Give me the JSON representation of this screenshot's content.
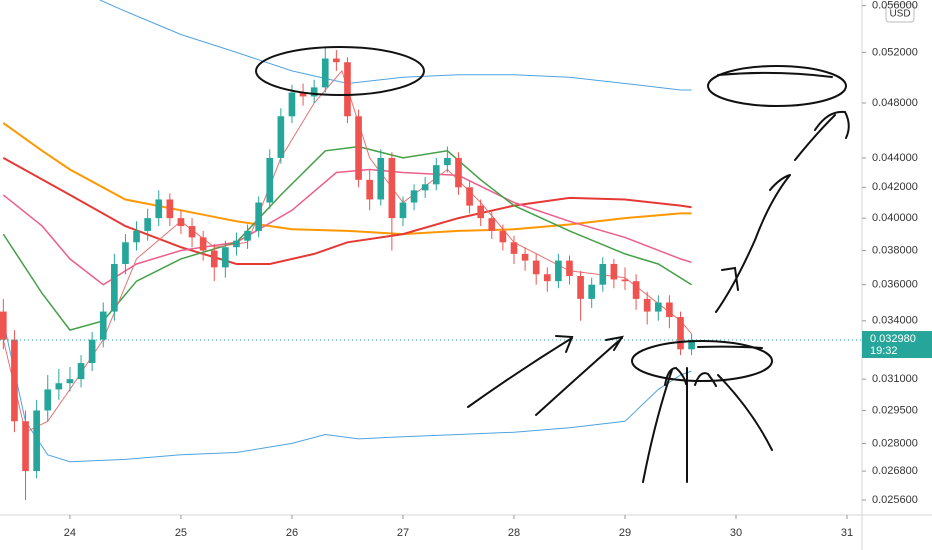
{
  "chart_data": {
    "type": "candlestick",
    "log_scale": true,
    "currency": "USD",
    "up_color": "#26a69a",
    "down_color": "#ef5350",
    "xlim": [
      23.37,
      31.135
    ],
    "xticks": [
      24,
      25,
      26,
      27,
      28,
      29,
      30,
      31
    ],
    "ylim": [
      0.025,
      0.0565
    ],
    "yticks": [
      {
        "value": 0.0256,
        "label": "0.025600"
      },
      {
        "value": 0.0268,
        "label": "0.026800"
      },
      {
        "value": 0.028,
        "label": "0.028000"
      },
      {
        "value": 0.0295,
        "label": "0.029500"
      },
      {
        "value": 0.031,
        "label": "0.031000"
      },
      {
        "value": 0.034,
        "label": "0.034000"
      },
      {
        "value": 0.036,
        "label": "0.036000"
      },
      {
        "value": 0.038,
        "label": "0.038000"
      },
      {
        "value": 0.04,
        "label": "0.040000"
      },
      {
        "value": 0.042,
        "label": "0.042000"
      },
      {
        "value": 0.044,
        "label": "0.044000"
      },
      {
        "value": 0.048,
        "label": "0.048000"
      },
      {
        "value": 0.052,
        "label": "0.052000"
      },
      {
        "value": 0.056,
        "label": "0.056000"
      }
    ],
    "last_price": {
      "value": 0.03298,
      "label": "0.032980"
    },
    "countdown": "19:32",
    "candles": {
      "x": [
        23.4,
        23.5,
        23.6,
        23.7,
        23.8,
        23.9,
        24.0,
        24.1,
        24.2,
        24.3,
        24.4,
        24.5,
        24.6,
        24.7,
        24.8,
        24.9,
        25.0,
        25.1,
        25.2,
        25.3,
        25.4,
        25.5,
        25.6,
        25.7,
        25.8,
        25.9,
        26.0,
        26.1,
        26.2,
        26.3,
        26.4,
        26.5,
        26.6,
        26.7,
        26.8,
        26.9,
        27.0,
        27.1,
        27.2,
        27.3,
        27.4,
        27.5,
        27.6,
        27.7,
        27.8,
        27.9,
        28.0,
        28.1,
        28.2,
        28.3,
        28.4,
        28.5,
        28.6,
        28.7,
        28.8,
        28.9,
        29.0,
        29.1,
        29.2,
        29.3,
        29.4,
        29.5,
        29.6
      ],
      "open": [
        0.0345,
        0.033,
        0.029,
        0.0268,
        0.0295,
        0.0305,
        0.0308,
        0.031,
        0.0318,
        0.033,
        0.0345,
        0.0372,
        0.0385,
        0.0392,
        0.04,
        0.0412,
        0.04,
        0.0395,
        0.0388,
        0.038,
        0.037,
        0.0382,
        0.0386,
        0.0392,
        0.041,
        0.044,
        0.047,
        0.0488,
        0.0485,
        0.0492,
        0.0515,
        0.0512,
        0.047,
        0.0425,
        0.0412,
        0.044,
        0.04,
        0.041,
        0.0418,
        0.0422,
        0.0435,
        0.044,
        0.042,
        0.0408,
        0.04,
        0.0392,
        0.0385,
        0.0378,
        0.0374,
        0.0366,
        0.0362,
        0.0374,
        0.0365,
        0.0352,
        0.036,
        0.0372,
        0.0363,
        0.0362,
        0.0352,
        0.0345,
        0.035,
        0.0342,
        0.0325
      ],
      "high": [
        0.0352,
        0.0335,
        0.0295,
        0.03,
        0.0312,
        0.0315,
        0.0316,
        0.0322,
        0.0334,
        0.035,
        0.0378,
        0.039,
        0.0398,
        0.0406,
        0.0418,
        0.0416,
        0.0405,
        0.04,
        0.0392,
        0.0384,
        0.0386,
        0.0391,
        0.0396,
        0.0414,
        0.0446,
        0.0476,
        0.0494,
        0.0495,
        0.0498,
        0.0525,
        0.0522,
        0.0516,
        0.0475,
        0.0432,
        0.0446,
        0.0444,
        0.0414,
        0.0422,
        0.0427,
        0.044,
        0.0448,
        0.0444,
        0.0424,
        0.0412,
        0.0404,
        0.0396,
        0.0389,
        0.0382,
        0.0378,
        0.037,
        0.0378,
        0.0377,
        0.0368,
        0.0364,
        0.0376,
        0.0375,
        0.037,
        0.0366,
        0.0356,
        0.0354,
        0.0354,
        0.0345,
        0.0333
      ],
      "low": [
        0.0325,
        0.0285,
        0.0256,
        0.0265,
        0.029,
        0.03,
        0.0304,
        0.0306,
        0.0314,
        0.0326,
        0.034,
        0.0366,
        0.038,
        0.0386,
        0.0395,
        0.0395,
        0.039,
        0.0382,
        0.0374,
        0.0362,
        0.0364,
        0.0377,
        0.0381,
        0.0388,
        0.0406,
        0.0436,
        0.0465,
        0.0478,
        0.048,
        0.0488,
        0.0505,
        0.0465,
        0.042,
        0.0405,
        0.0408,
        0.038,
        0.0395,
        0.0405,
        0.0413,
        0.0418,
        0.043,
        0.0415,
        0.0403,
        0.0395,
        0.0387,
        0.038,
        0.0372,
        0.0368,
        0.036,
        0.0356,
        0.0358,
        0.036,
        0.034,
        0.0347,
        0.0356,
        0.0358,
        0.0357,
        0.0346,
        0.0338,
        0.034,
        0.0336,
        0.0322,
        0.0322
      ],
      "close": [
        0.033,
        0.029,
        0.0268,
        0.0295,
        0.0305,
        0.0308,
        0.031,
        0.0318,
        0.033,
        0.0345,
        0.0372,
        0.0385,
        0.0392,
        0.04,
        0.0412,
        0.04,
        0.0395,
        0.0388,
        0.038,
        0.037,
        0.0382,
        0.0386,
        0.0392,
        0.041,
        0.044,
        0.047,
        0.0488,
        0.0485,
        0.0492,
        0.0515,
        0.0512,
        0.047,
        0.0425,
        0.0412,
        0.044,
        0.04,
        0.041,
        0.0418,
        0.0422,
        0.0435,
        0.044,
        0.042,
        0.0408,
        0.04,
        0.0392,
        0.0385,
        0.0378,
        0.0374,
        0.0366,
        0.0362,
        0.0374,
        0.0365,
        0.0352,
        0.036,
        0.0372,
        0.0363,
        0.0362,
        0.0352,
        0.0345,
        0.035,
        0.0342,
        0.0325,
        0.03298
      ]
    },
    "series": [
      {
        "color": "#4fa3e0",
        "width": 1,
        "x": [
          24.27,
          24.5,
          25.0,
          25.5,
          26.0,
          26.5,
          27.0,
          27.5,
          28.0,
          28.5,
          29.0,
          29.5,
          29.6
        ],
        "values": [
          0.0565,
          0.0555,
          0.0535,
          0.052,
          0.0505,
          0.0495,
          0.05,
          0.0502,
          0.0502,
          0.05,
          0.0495,
          0.049,
          0.049
        ]
      },
      {
        "color": "#4fa3e0",
        "width": 1,
        "x": [
          23.4,
          23.6,
          23.8,
          24.0,
          24.5,
          25.0,
          25.5,
          26.0,
          26.3,
          26.6,
          27.0,
          27.5,
          28.0,
          28.5,
          29.0,
          29.3,
          29.5,
          29.6
        ],
        "values": [
          0.034,
          0.029,
          0.0275,
          0.0272,
          0.0273,
          0.0275,
          0.0276,
          0.028,
          0.0284,
          0.0282,
          0.0283,
          0.0284,
          0.0285,
          0.0287,
          0.029,
          0.0305,
          0.0312,
          0.0314
        ]
      },
      {
        "color": "#ff9800",
        "width": 2,
        "x": [
          23.4,
          23.75,
          24.0,
          24.5,
          25.0,
          25.5,
          26.0,
          26.5,
          27.0,
          27.5,
          28.0,
          28.5,
          29.0,
          29.5,
          29.6
        ],
        "values": [
          0.0465,
          0.0445,
          0.0432,
          0.0412,
          0.0405,
          0.0398,
          0.0393,
          0.0392,
          0.039,
          0.0392,
          0.0393,
          0.0396,
          0.04,
          0.0403,
          0.0403
        ]
      },
      {
        "color": "#e53935",
        "width": 2,
        "x": [
          23.4,
          24.0,
          24.5,
          25.0,
          25.5,
          25.8,
          26.2,
          26.5,
          27.0,
          27.5,
          28.0,
          28.5,
          29.0,
          29.5,
          29.6
        ],
        "values": [
          0.044,
          0.0415,
          0.0395,
          0.0382,
          0.0372,
          0.0372,
          0.0378,
          0.0385,
          0.039,
          0.04,
          0.0408,
          0.0413,
          0.0412,
          0.0408,
          0.0407
        ]
      },
      {
        "color": "#ec5f8a",
        "width": 1.5,
        "x": [
          23.4,
          23.75,
          24.0,
          24.3,
          24.6,
          25.0,
          25.5,
          26.0,
          26.4,
          26.7,
          27.0,
          27.5,
          28.0,
          28.5,
          29.0,
          29.5,
          29.6
        ],
        "values": [
          0.0415,
          0.0395,
          0.0375,
          0.036,
          0.0372,
          0.038,
          0.0385,
          0.0405,
          0.043,
          0.0432,
          0.043,
          0.0428,
          0.041,
          0.0398,
          0.0388,
          0.0375,
          0.0373
        ]
      },
      {
        "color": "#43a047",
        "width": 1.5,
        "x": [
          23.4,
          23.75,
          24.0,
          24.3,
          24.6,
          25.0,
          25.5,
          25.9,
          26.3,
          26.6,
          27.0,
          27.4,
          27.7,
          28.0,
          28.5,
          29.0,
          29.3,
          29.6
        ],
        "values": [
          0.039,
          0.0355,
          0.0335,
          0.034,
          0.0362,
          0.0375,
          0.0385,
          0.0415,
          0.0445,
          0.0448,
          0.044,
          0.0445,
          0.0425,
          0.0408,
          0.0392,
          0.0378,
          0.0372,
          0.036
        ]
      },
      {
        "color": "#e57373",
        "width": 1,
        "x": [
          23.4,
          23.6,
          23.8,
          24.0,
          24.3,
          24.6,
          25.0,
          25.3,
          25.6,
          25.9,
          26.2,
          26.45,
          26.7,
          27.0,
          27.4,
          27.7,
          28.0,
          28.5,
          29.0,
          29.5,
          29.6
        ],
        "values": [
          0.033,
          0.0285,
          0.029,
          0.0305,
          0.033,
          0.0375,
          0.0398,
          0.0382,
          0.0385,
          0.044,
          0.048,
          0.0505,
          0.044,
          0.041,
          0.0432,
          0.041,
          0.0385,
          0.0368,
          0.0364,
          0.034,
          0.0333
        ]
      }
    ]
  }
}
